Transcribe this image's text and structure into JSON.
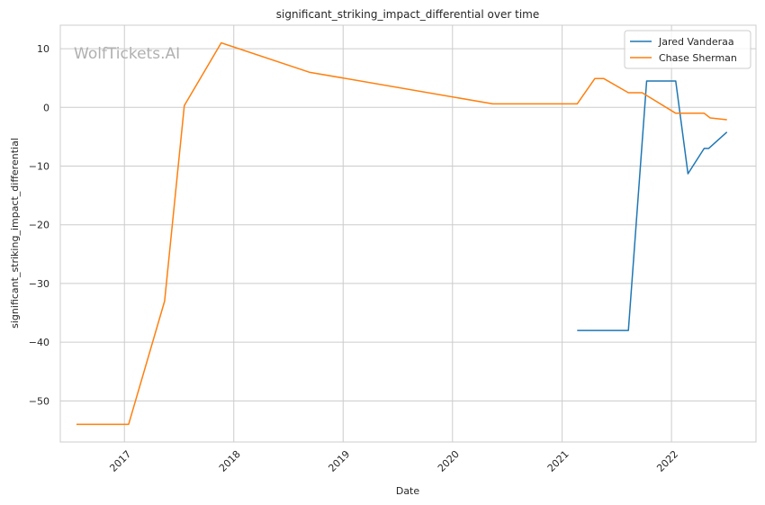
{
  "chart_data": {
    "type": "line",
    "title": "significant_striking_impact_differential over time",
    "xlabel": "Date",
    "ylabel": "significant_striking_impact_differential",
    "watermark": "WolfTickets.AI",
    "xlim": [
      "2016-06-01",
      "2022-10-10"
    ],
    "ylim": [
      -57,
      14
    ],
    "x_ticks": [
      "2017-01-01",
      "2018-01-01",
      "2019-01-01",
      "2020-01-01",
      "2021-01-01",
      "2022-01-01"
    ],
    "x_tick_labels": [
      "2017",
      "2018",
      "2019",
      "2020",
      "2021",
      "2022"
    ],
    "y_ticks": [
      10,
      0,
      -10,
      -20,
      -30,
      -40,
      -50
    ],
    "y_tick_labels": [
      "10",
      "0",
      "−10",
      "−20",
      "−30",
      "−40",
      "−50"
    ],
    "grid": true,
    "legend_position": "top-right",
    "series": [
      {
        "name": "Jared Vanderaa",
        "color": "#1f77b4",
        "points": [
          [
            "2021-02-20",
            -38
          ],
          [
            "2021-08-10",
            -38
          ],
          [
            "2021-10-10",
            4.5
          ],
          [
            "2022-01-15",
            4.5
          ],
          [
            "2022-02-25",
            -11.3
          ],
          [
            "2022-04-20",
            -7
          ],
          [
            "2022-05-05",
            -7
          ],
          [
            "2022-07-05",
            -4.2
          ]
        ]
      },
      {
        "name": "Chase Sherman",
        "color": "#ff7f0e",
        "points": [
          [
            "2016-07-25",
            -54
          ],
          [
            "2017-01-15",
            -54
          ],
          [
            "2017-05-15",
            -33
          ],
          [
            "2017-07-20",
            0.3
          ],
          [
            "2017-11-20",
            11
          ],
          [
            "2018-09-10",
            6
          ],
          [
            "2020-05-15",
            0.6
          ],
          [
            "2021-02-20",
            0.6
          ],
          [
            "2021-04-20",
            4.9
          ],
          [
            "2021-05-20",
            4.9
          ],
          [
            "2021-08-10",
            2.5
          ],
          [
            "2021-09-25",
            2.5
          ],
          [
            "2022-01-15",
            -1
          ],
          [
            "2022-04-20",
            -1
          ],
          [
            "2022-05-10",
            -1.8
          ],
          [
            "2022-07-05",
            -2.1
          ]
        ]
      }
    ]
  }
}
